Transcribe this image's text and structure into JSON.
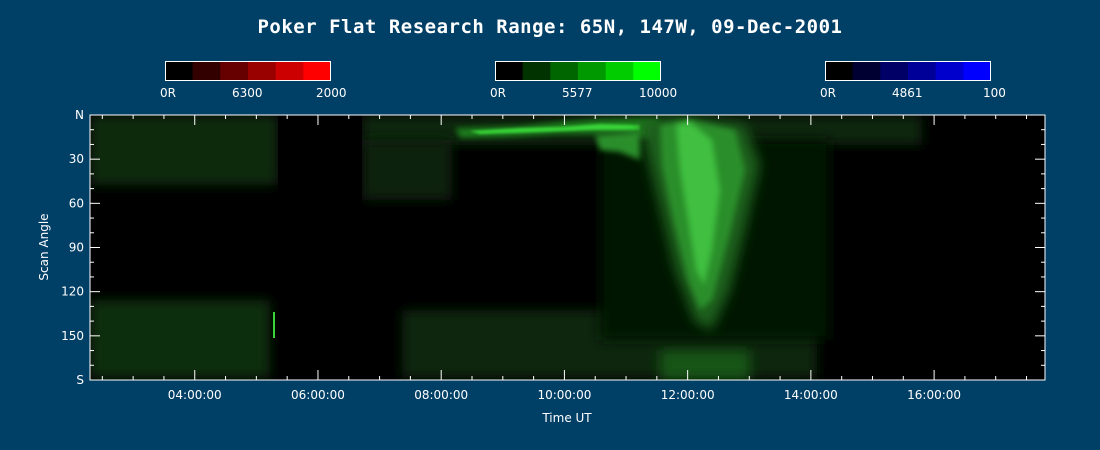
{
  "chart_data": {
    "type": "heatmap",
    "title": "Poker Flat Research Range: 65N, 147W, 09-Dec-2001",
    "xlabel": "Time UT",
    "ylabel": "Scan Angle",
    "x_ticks": [
      "04:00:00",
      "06:00:00",
      "08:00:00",
      "10:00:00",
      "12:00:00",
      "14:00:00",
      "16:00:00"
    ],
    "x_tick_hours": [
      4,
      6,
      8,
      10,
      12,
      14,
      16
    ],
    "xlim_hours": [
      2.3,
      17.8
    ],
    "y_ticks": [
      "N",
      "30",
      "60",
      "90",
      "120",
      "150",
      "S"
    ],
    "y_tick_values": [
      0,
      30,
      60,
      90,
      120,
      150,
      180
    ],
    "ylim": [
      0,
      180
    ],
    "colorbars": [
      {
        "name": "6300",
        "min_label": "0R",
        "mid_label": "6300",
        "max_label": "2000",
        "color": "#ff0000",
        "color_steps": [
          "#000000",
          "#330000",
          "#660000",
          "#990000",
          "#cc0000",
          "#ff0000"
        ]
      },
      {
        "name": "5577",
        "min_label": "0R",
        "mid_label": "5577",
        "max_label": "10000",
        "color": "#00ff00",
        "color_steps": [
          "#000000",
          "#003300",
          "#006600",
          "#009900",
          "#00cc00",
          "#00ff00"
        ]
      },
      {
        "name": "4861",
        "min_label": "0R",
        "mid_label": "4861",
        "max_label": "100",
        "color": "#0000ff",
        "color_steps": [
          "#000000",
          "#000033",
          "#000066",
          "#000099",
          "#0000cc",
          "#0000ff"
        ]
      }
    ]
  },
  "colors": {
    "background": "#003f66",
    "plot_background": "#000000",
    "foreground": "#ffffff"
  }
}
